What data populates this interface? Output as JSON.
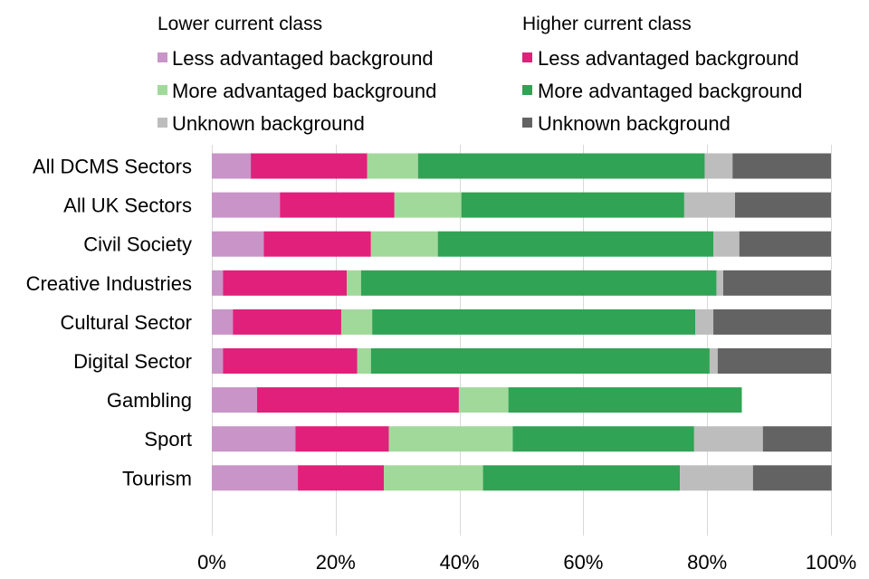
{
  "chart_data": {
    "type": "bar",
    "orientation": "horizontal",
    "stacked": "percent",
    "categories": [
      "All DCMS Sectors",
      "All UK Sectors",
      "Civil Society",
      "Creative Industries",
      "Cultural Sector",
      "Digital Sector",
      "Gambling",
      "Sport",
      "Tourism"
    ],
    "legend_groups": [
      {
        "title": "Lower current class",
        "entries": [
          "Less advantaged background",
          "More advantaged background",
          "Unknown background"
        ]
      },
      {
        "title": "Higher current class",
        "entries": [
          "Less advantaged background",
          "More advantaged background",
          "Unknown background"
        ]
      }
    ],
    "series": [
      {
        "group": "Lower current class",
        "name": "Less advantaged background",
        "color": "#c994c7",
        "values": [
          6.3,
          11.0,
          8.4,
          1.8,
          3.4,
          1.8,
          7.3,
          13.5,
          13.9
        ]
      },
      {
        "group": "Higher current class",
        "name": "Less advantaged background",
        "color": "#e0207a",
        "values": [
          18.8,
          18.5,
          17.3,
          20.0,
          17.5,
          21.7,
          32.6,
          15.1,
          13.9
        ]
      },
      {
        "group": "Lower current class",
        "name": "More advantaged background",
        "color": "#a1d99b",
        "values": [
          8.2,
          10.8,
          10.8,
          2.3,
          5.0,
          2.2,
          8.0,
          20.0,
          16.0
        ]
      },
      {
        "group": "Higher current class",
        "name": "More advantaged background",
        "color": "#31a354",
        "values": [
          46.3,
          36.0,
          44.5,
          57.4,
          52.2,
          54.7,
          37.7,
          29.3,
          31.8
        ]
      },
      {
        "group": "Lower current class",
        "name": "Unknown background",
        "color": "#bdbdbd",
        "values": [
          4.5,
          8.2,
          4.2,
          1.1,
          2.9,
          1.3,
          0,
          11.1,
          11.8
        ]
      },
      {
        "group": "Higher current class",
        "name": "Unknown background",
        "color": "#636363",
        "values": [
          15.9,
          15.5,
          14.8,
          17.4,
          19.0,
          18.3,
          0,
          11.1,
          12.7
        ]
      }
    ],
    "xlim": [
      0,
      100
    ],
    "xticks": [
      "0%",
      "20%",
      "40%",
      "60%",
      "80%",
      "100%"
    ],
    "legend_position": "top",
    "grid": "vertical"
  }
}
